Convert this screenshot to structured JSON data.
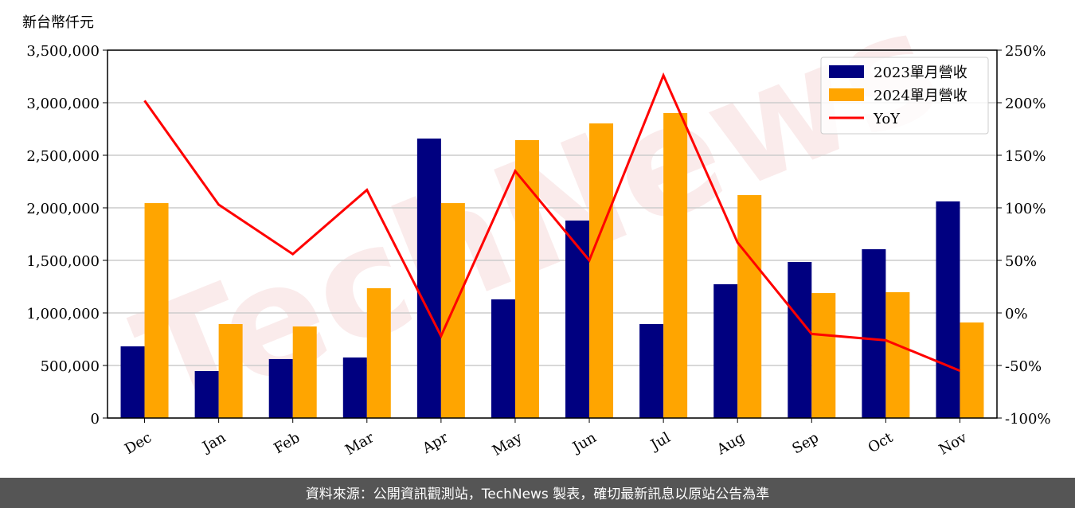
{
  "chart_data": {
    "type": "bar-line",
    "y_axis_label": "新台幣仟元",
    "watermark": "TechNews",
    "source": "資料來源：公開資訊觀測站，TechNews 製表，確切最新訊息以原站公告為準",
    "categories": [
      "Dec",
      "Jan",
      "Feb",
      "Mar",
      "Apr",
      "May",
      "Jun",
      "Jul",
      "Aug",
      "Sep",
      "Oct",
      "Nov"
    ],
    "series": [
      {
        "name": "2023單月營收",
        "type": "bar",
        "color": "#000080",
        "values": [
          682000,
          447000,
          561000,
          576000,
          2659000,
          1129000,
          1879000,
          894000,
          1273000,
          1485000,
          1606000,
          2061000
        ]
      },
      {
        "name": "2024單月營收",
        "type": "bar",
        "color": "#ffa500",
        "values": [
          2045000,
          894000,
          871000,
          1235000,
          2045000,
          2644000,
          2803000,
          2902000,
          2121000,
          1189000,
          1197000,
          909000
        ]
      },
      {
        "name": "YoY",
        "type": "line",
        "axis": "y2",
        "color": "#ff0000",
        "values": [
          202,
          103,
          56,
          117,
          -22,
          135,
          50,
          226,
          67,
          -20,
          -26,
          -55
        ]
      }
    ],
    "ylim": [
      0,
      3500000
    ],
    "yticks": [
      0,
      {
        "value": 500000,
        "label": "500,000"
      },
      {
        "value": 1000000,
        "label": "1,000,000"
      },
      {
        "value": 1500000,
        "label": "1,500,000"
      },
      {
        "value": 2000000,
        "label": "2,000,000"
      },
      {
        "value": 2500000,
        "label": "2,500,000"
      },
      {
        "value": 3000000,
        "label": "3,000,000"
      },
      {
        "value": 3500000,
        "label": "3,500,000"
      }
    ],
    "y2lim": [
      -100,
      250
    ],
    "y2ticks": [
      {
        "value": -100,
        "label": "-100%"
      },
      {
        "value": -50,
        "label": "-50%"
      },
      {
        "value": 0,
        "label": "0%"
      },
      {
        "value": 50,
        "label": "50%"
      },
      {
        "value": 100,
        "label": "100%"
      },
      {
        "value": 150,
        "label": "150%"
      },
      {
        "value": 200,
        "label": "200%"
      },
      {
        "value": 250,
        "label": "250%"
      }
    ],
    "grid": true,
    "legend": "upper right"
  }
}
